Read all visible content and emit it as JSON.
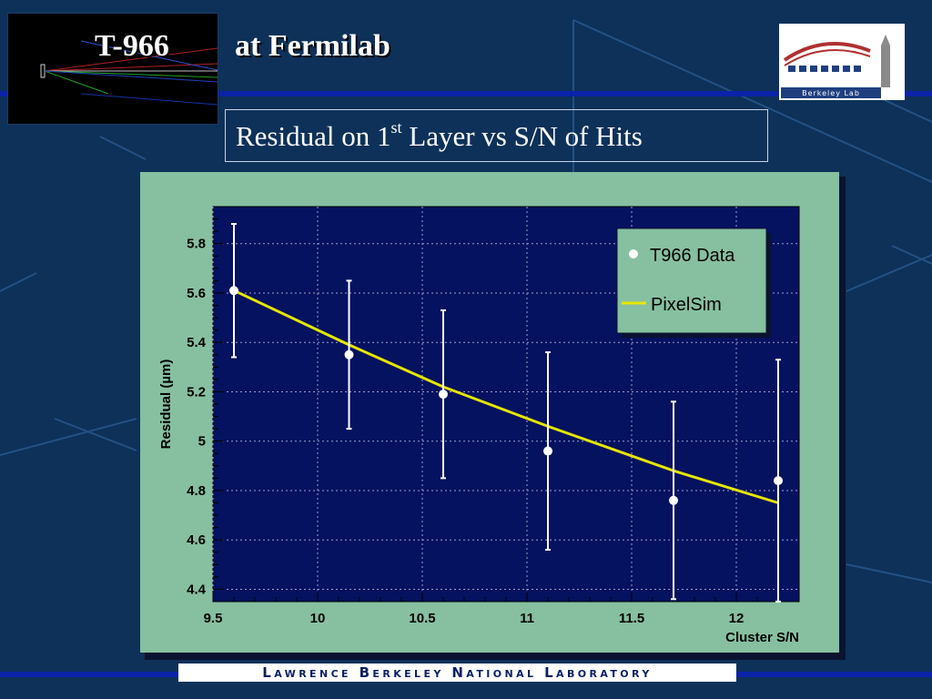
{
  "slide": {
    "title_left": "T-966",
    "title_right": "at Fermilab",
    "subtitle_pre": "Residual on 1",
    "subtitle_sup": "st",
    "subtitle_post": " Layer vs S/N of Hits",
    "logo_text": "Berkeley Lab",
    "footer": "Lawrence Berkeley National Laboratory",
    "colors": {
      "background": "#0d3159",
      "rule": "#0a23a8",
      "chart_panel": "#86c0a0",
      "plot_area": "#051260",
      "fit": "#e6e600"
    }
  },
  "chart_data": {
    "type": "scatter",
    "xlabel": "Cluster S/N",
    "ylabel": "Residual (µm)",
    "xlim": [
      9.5,
      12.3
    ],
    "ylim": [
      4.35,
      5.95
    ],
    "x_ticks": [
      9.5,
      10,
      10.5,
      11,
      11.5,
      12
    ],
    "y_ticks": [
      4.4,
      4.6,
      4.8,
      5,
      5.2,
      5.4,
      5.6,
      5.8
    ],
    "grid": true,
    "legend_position": "top-right",
    "series": [
      {
        "name": "T966 Data",
        "kind": "points_with_error_bars",
        "color": "#ffffff",
        "points": [
          {
            "x": 9.6,
            "y": 5.61,
            "ylow": 5.34,
            "yhigh": 5.88
          },
          {
            "x": 10.15,
            "y": 5.35,
            "ylow": 5.05,
            "yhigh": 5.65
          },
          {
            "x": 10.6,
            "y": 5.19,
            "ylow": 4.85,
            "yhigh": 5.53
          },
          {
            "x": 11.1,
            "y": 4.96,
            "ylow": 4.56,
            "yhigh": 5.36
          },
          {
            "x": 11.7,
            "y": 4.76,
            "ylow": 4.36,
            "yhigh": 5.16
          },
          {
            "x": 12.2,
            "y": 4.84,
            "ylow": 4.35,
            "yhigh": 5.33
          }
        ]
      },
      {
        "name": "PixelSim",
        "kind": "line",
        "color": "#e6e600",
        "points": [
          {
            "x": 9.6,
            "y": 5.61
          },
          {
            "x": 10.15,
            "y": 5.39
          },
          {
            "x": 10.6,
            "y": 5.22
          },
          {
            "x": 11.1,
            "y": 5.06
          },
          {
            "x": 11.7,
            "y": 4.88
          },
          {
            "x": 12.2,
            "y": 4.75
          }
        ]
      }
    ]
  }
}
